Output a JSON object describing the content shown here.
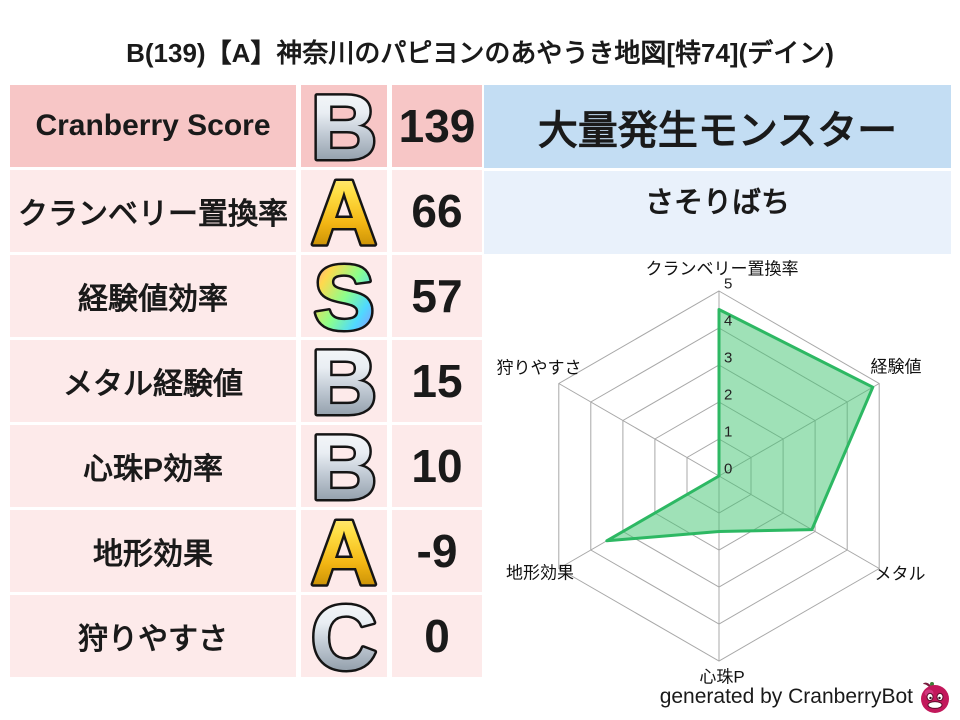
{
  "title": "B(139)【A】神奈川のパピヨンのあやうき地図[特74](デイン)",
  "colors": {
    "text": "#1a1a1a",
    "row_primary_bg": "#f7c6c6",
    "row_bg": "#fdeaea",
    "monster_header_bg": "#c3ddf3",
    "monster_row_bg": "#e9f1fb",
    "radar_fill": "#3fc46f",
    "radar_stroke": "#2db863",
    "grid": "#a8a8a8"
  },
  "stats_table": {
    "rows": [
      {
        "label": "Cranberry Score",
        "grade": "B",
        "grade_style": "silver",
        "value": "139",
        "primary": true
      },
      {
        "label": "クランベリー置換率",
        "grade": "A",
        "grade_style": "gold",
        "value": "66",
        "primary": false
      },
      {
        "label": "経験値効率",
        "grade": "S",
        "grade_style": "rainbow",
        "value": "57",
        "primary": false
      },
      {
        "label": "メタル経験値",
        "grade": "B",
        "grade_style": "silver",
        "value": "15",
        "primary": false
      },
      {
        "label": "心珠P効率",
        "grade": "B",
        "grade_style": "silver",
        "value": "10",
        "primary": false
      },
      {
        "label": "地形効果",
        "grade": "A",
        "grade_style": "gold",
        "value": "-9",
        "primary": false
      },
      {
        "label": "狩りやすさ",
        "grade": "C",
        "grade_style": "silver",
        "value": "0",
        "primary": false
      }
    ]
  },
  "monster_panel": {
    "header": "大量発生モンスター",
    "name": "さそりばち"
  },
  "chart_data": {
    "type": "radar",
    "categories": [
      "クランベリー置換率",
      "経験値",
      "メタル",
      "心珠P",
      "地形効果",
      "狩りやすさ"
    ],
    "values": [
      4.5,
      4.8,
      2.9,
      1.5,
      3.5,
      0
    ],
    "ticks": [
      0,
      1,
      2,
      3,
      4,
      5
    ],
    "rmax": 5,
    "grid": true,
    "legend": "none",
    "title": ""
  },
  "footer": {
    "credit": "generated by CranberryBot",
    "icon": "cranberry-face-icon"
  }
}
